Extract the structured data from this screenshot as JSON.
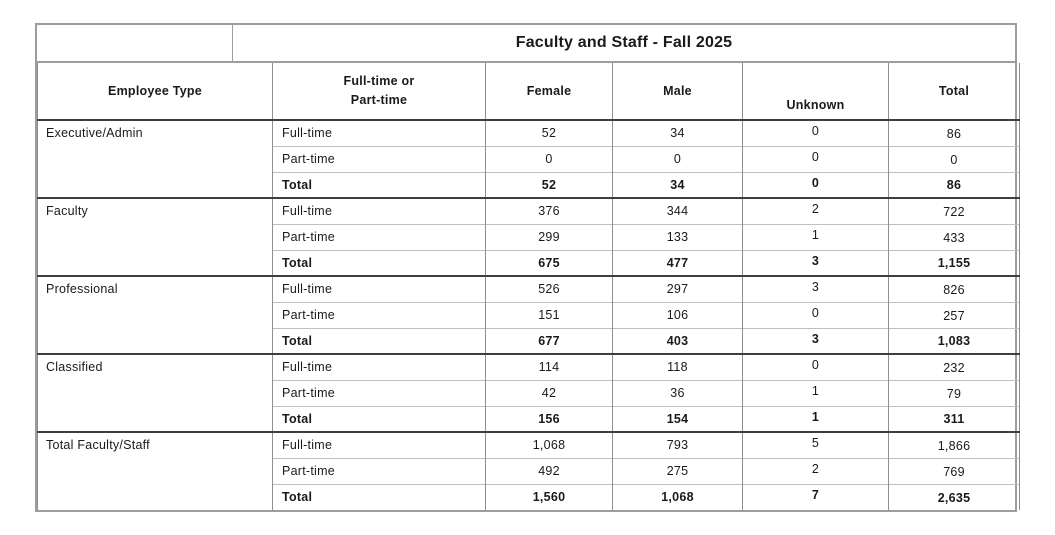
{
  "title": "Faculty and Staff - Fall 2025",
  "columns": {
    "employee_type": "Employee Type",
    "ft_pt_line1": "Full-time or",
    "ft_pt_line2": "Part-time",
    "female": "Female",
    "male": "Male",
    "unknown": "Unknown",
    "total": "Total"
  },
  "groups": [
    {
      "name": "Executive/Admin",
      "rows": [
        {
          "label": "Full-time",
          "female": "52",
          "male": "34",
          "unknown": "0",
          "total": "86",
          "bold": false
        },
        {
          "label": "Part-time",
          "female": "0",
          "male": "0",
          "unknown": "0",
          "total": "0",
          "bold": false
        },
        {
          "label": "Total",
          "female": "52",
          "male": "34",
          "unknown": "0",
          "total": "86",
          "bold": true
        }
      ]
    },
    {
      "name": "Faculty",
      "rows": [
        {
          "label": "Full-time",
          "female": "376",
          "male": "344",
          "unknown": "2",
          "total": "722",
          "bold": false
        },
        {
          "label": "Part-time",
          "female": "299",
          "male": "133",
          "unknown": "1",
          "total": "433",
          "bold": false
        },
        {
          "label": "Total",
          "female": "675",
          "male": "477",
          "unknown": "3",
          "total": "1,155",
          "bold": true
        }
      ]
    },
    {
      "name": "Professional",
      "rows": [
        {
          "label": "Full-time",
          "female": "526",
          "male": "297",
          "unknown": "3",
          "total": "826",
          "bold": false
        },
        {
          "label": "Part-time",
          "female": "151",
          "male": "106",
          "unknown": "0",
          "total": "257",
          "bold": false
        },
        {
          "label": "Total",
          "female": "677",
          "male": "403",
          "unknown": "3",
          "total": "1,083",
          "bold": true
        }
      ]
    },
    {
      "name": "Classified",
      "rows": [
        {
          "label": "Full-time",
          "female": "114",
          "male": "118",
          "unknown": "0",
          "total": "232",
          "bold": false
        },
        {
          "label": "Part-time",
          "female": "42",
          "male": "36",
          "unknown": "1",
          "total": "79",
          "bold": false
        },
        {
          "label": "Total",
          "female": "156",
          "male": "154",
          "unknown": "1",
          "total": "311",
          "bold": true
        }
      ]
    },
    {
      "name": "Total Faculty/Staff",
      "rows": [
        {
          "label": "Full-time",
          "female": "1,068",
          "male": "793",
          "unknown": "5",
          "total": "1,866",
          "bold": false
        },
        {
          "label": "Part-time",
          "female": "492",
          "male": "275",
          "unknown": "2",
          "total": "769",
          "bold": false
        },
        {
          "label": "Total",
          "female": "1,560",
          "male": "1,068",
          "unknown": "7",
          "total": "2,635",
          "bold": true
        }
      ]
    }
  ]
}
